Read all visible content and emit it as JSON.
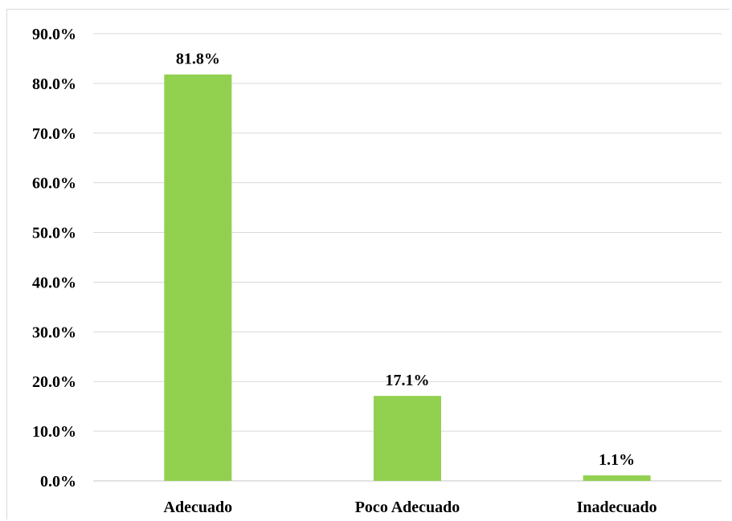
{
  "chart_data": {
    "type": "bar",
    "title": "",
    "xlabel": "",
    "ylabel": "",
    "categories": [
      "Adecuado",
      "Poco Adecuado",
      "Inadecuado"
    ],
    "values": [
      81.8,
      17.1,
      1.1
    ],
    "data_labels": [
      "81.8%",
      "17.1%",
      "1.1%"
    ],
    "ylim": [
      0,
      90
    ],
    "y_ticks": [
      0,
      10,
      20,
      30,
      40,
      50,
      60,
      70,
      80,
      90
    ],
    "y_tick_labels": [
      "0.0%",
      "10.0%",
      "20.0%",
      "30.0%",
      "40.0%",
      "50.0%",
      "60.0%",
      "70.0%",
      "80.0%",
      "90.0%"
    ],
    "grid": true,
    "legend": "none",
    "bar_color": "#92d050",
    "grid_color": "#d9d9d9"
  }
}
